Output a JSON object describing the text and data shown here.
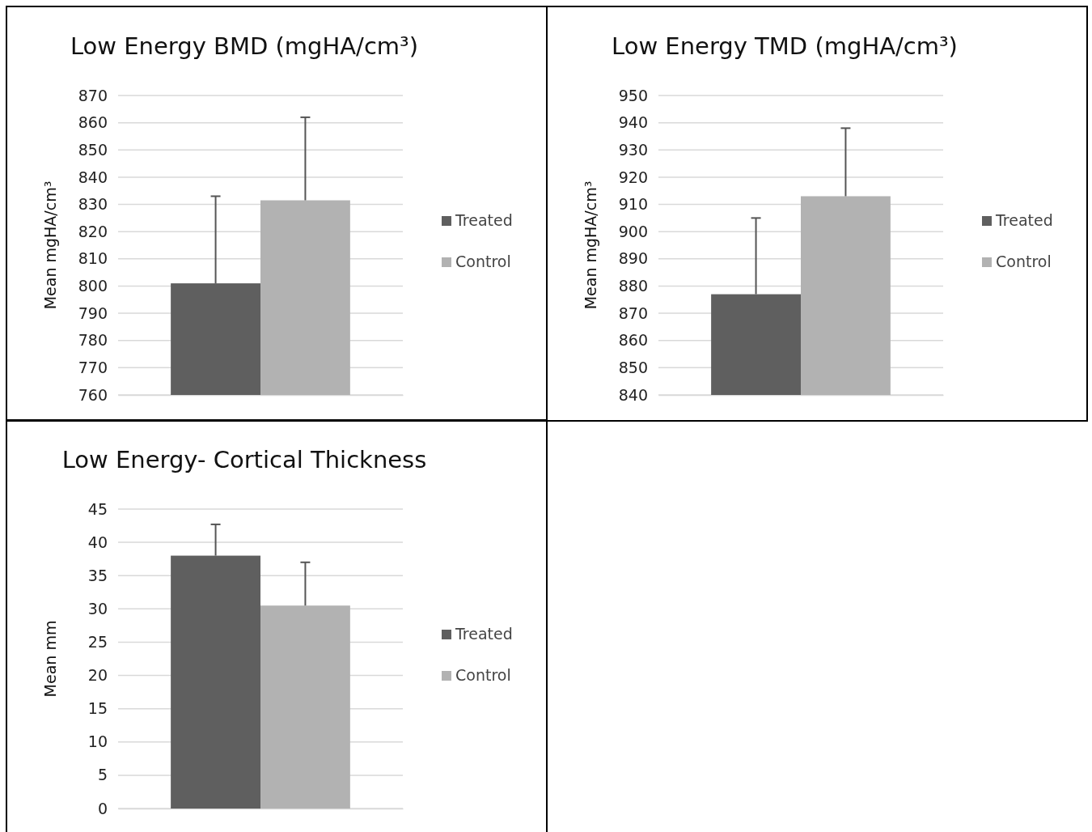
{
  "chart_data": [
    {
      "type": "bar",
      "title": "Low Energy BMD (mgHA/cm³)",
      "ylabel": "Mean mgHA/cm³",
      "categories": [
        null
      ],
      "series": [
        {
          "name": "Treated",
          "color": "#5f5f5f",
          "values": [
            801
          ],
          "errors": [
            [
              801,
              833
            ]
          ]
        },
        {
          "name": "Control",
          "color": "#b2b2b2",
          "values": [
            831.5
          ],
          "errors": [
            [
              831.5,
              862
            ]
          ]
        }
      ],
      "ylim": [
        760,
        870
      ],
      "yticks": [
        760,
        770,
        780,
        790,
        800,
        810,
        820,
        830,
        840,
        850,
        860,
        870
      ],
      "grid": "y",
      "legend": "right"
    },
    {
      "type": "bar",
      "title": "Low Energy TMD (mgHA/cm³)",
      "ylabel": "Mean mgHA/cm³",
      "categories": [
        null
      ],
      "series": [
        {
          "name": "Treated",
          "color": "#5f5f5f",
          "values": [
            877
          ],
          "errors": [
            [
              877,
              905
            ]
          ]
        },
        {
          "name": "Control",
          "color": "#b2b2b2",
          "values": [
            913
          ],
          "errors": [
            [
              913,
              938
            ]
          ]
        }
      ],
      "ylim": [
        840,
        950
      ],
      "yticks": [
        840,
        850,
        860,
        870,
        880,
        890,
        900,
        910,
        920,
        930,
        940,
        950
      ],
      "grid": "y",
      "legend": "right"
    },
    {
      "type": "bar",
      "title": "Low Energy- Cortical Thickness",
      "ylabel": "Mean mm",
      "categories": [
        null
      ],
      "series": [
        {
          "name": "Treated",
          "color": "#5f5f5f",
          "values": [
            38
          ],
          "errors": [
            [
              38,
              42.7
            ]
          ]
        },
        {
          "name": "Control",
          "color": "#b2b2b2",
          "values": [
            30.5
          ],
          "errors": [
            [
              30.5,
              37
            ]
          ]
        }
      ],
      "ylim": [
        0,
        45
      ],
      "yticks": [
        0,
        5,
        10,
        15,
        20,
        25,
        30,
        35,
        40,
        45
      ],
      "grid": "y",
      "legend": "right"
    }
  ]
}
